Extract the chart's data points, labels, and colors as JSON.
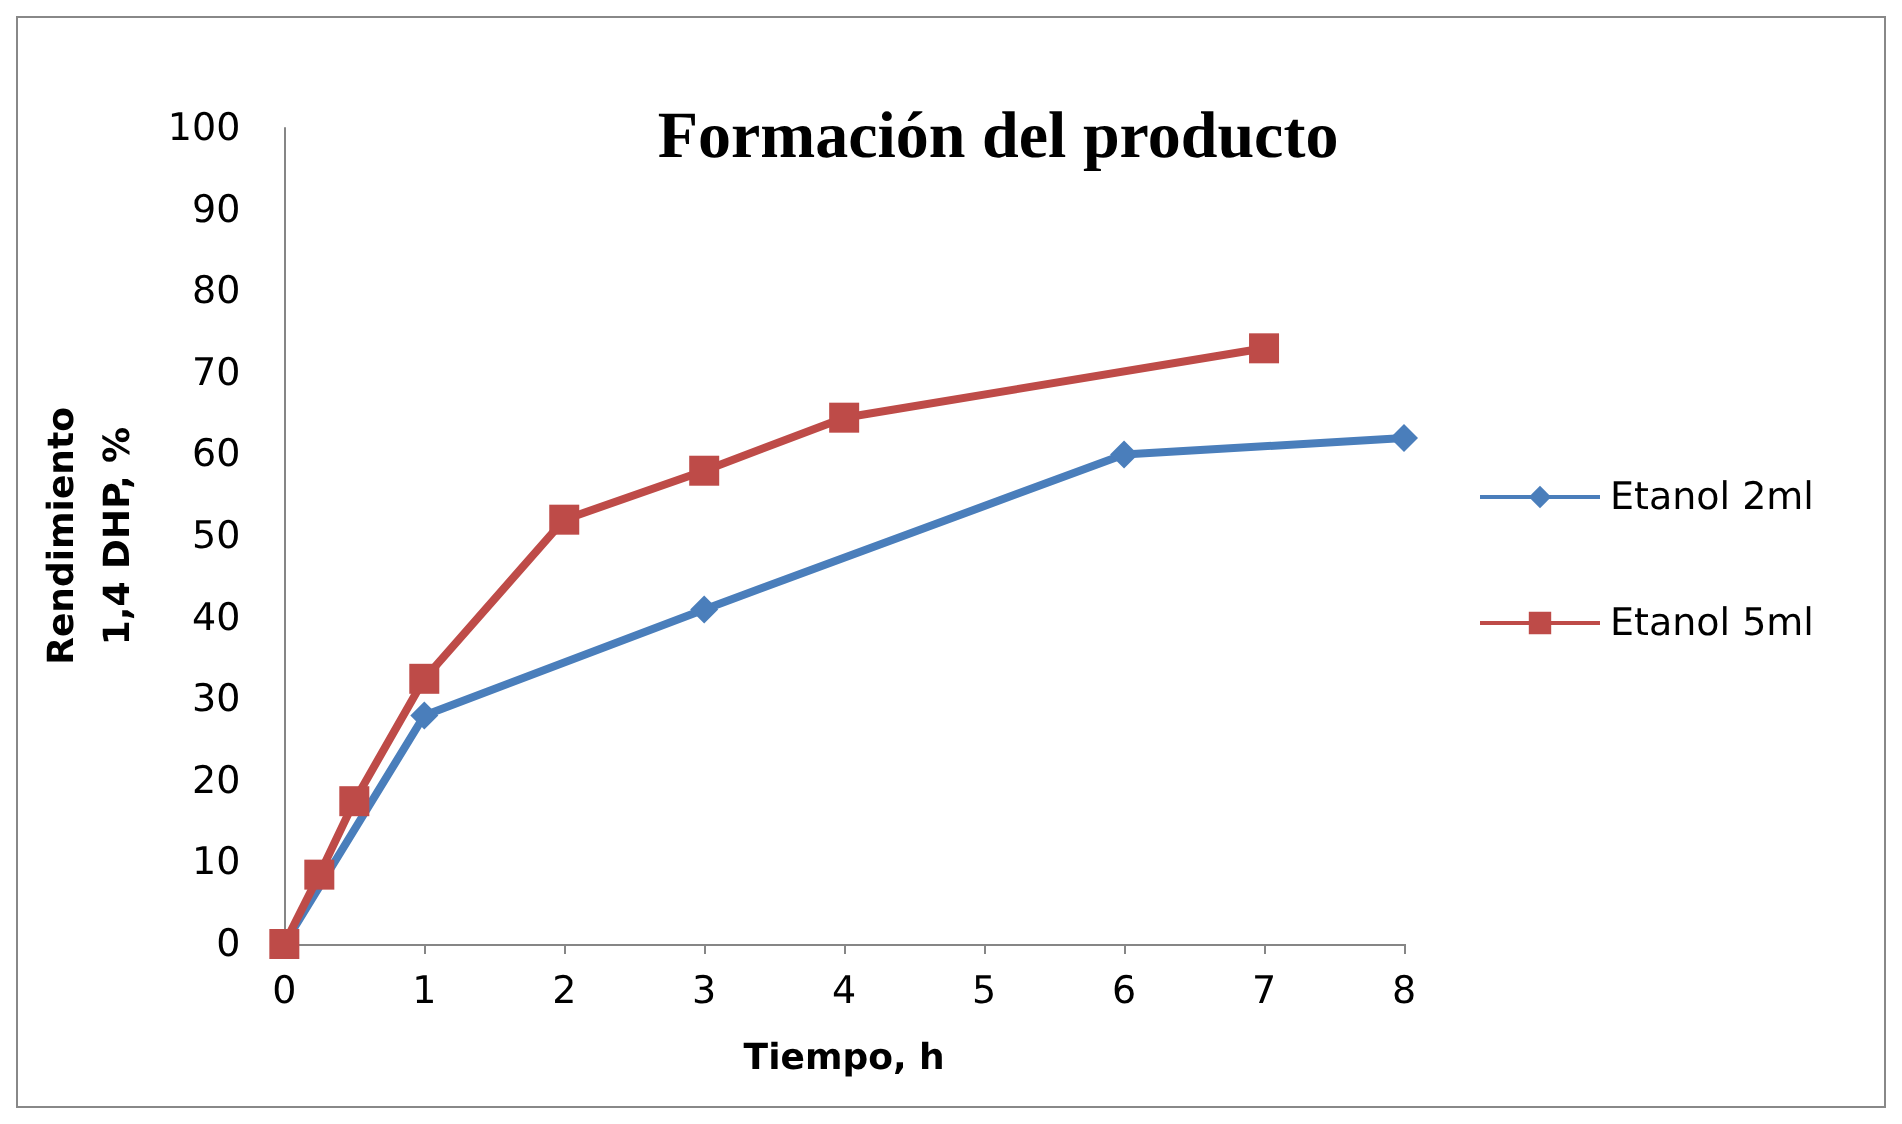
{
  "chart_data": {
    "type": "line",
    "title": "Formación del producto",
    "xlabel": "Tiempo, h",
    "ylabel": "Rendimiento\n1,4 DHP, %",
    "xlim": [
      0,
      8
    ],
    "xticks": [
      0,
      1,
      2,
      3,
      4,
      5,
      6,
      7,
      8
    ],
    "ylim": [
      0,
      100
    ],
    "yticks": [
      0,
      10,
      20,
      30,
      40,
      50,
      60,
      70,
      80,
      90,
      100
    ],
    "grid": false,
    "legend": "right",
    "series": [
      {
        "name": "Etanol 2ml",
        "color": "#4a7ebb",
        "marker": "diamond",
        "x": [
          0,
          1,
          3,
          6,
          8
        ],
        "values": [
          0,
          28,
          41,
          60,
          62
        ]
      },
      {
        "name": "Etanol 5ml",
        "color": "#be4b48",
        "marker": "square",
        "x": [
          0,
          0.25,
          0.5,
          1,
          2,
          3,
          4,
          7
        ],
        "values": [
          0,
          8.5,
          17.5,
          32.5,
          52,
          58,
          64.5,
          73
        ]
      }
    ]
  }
}
